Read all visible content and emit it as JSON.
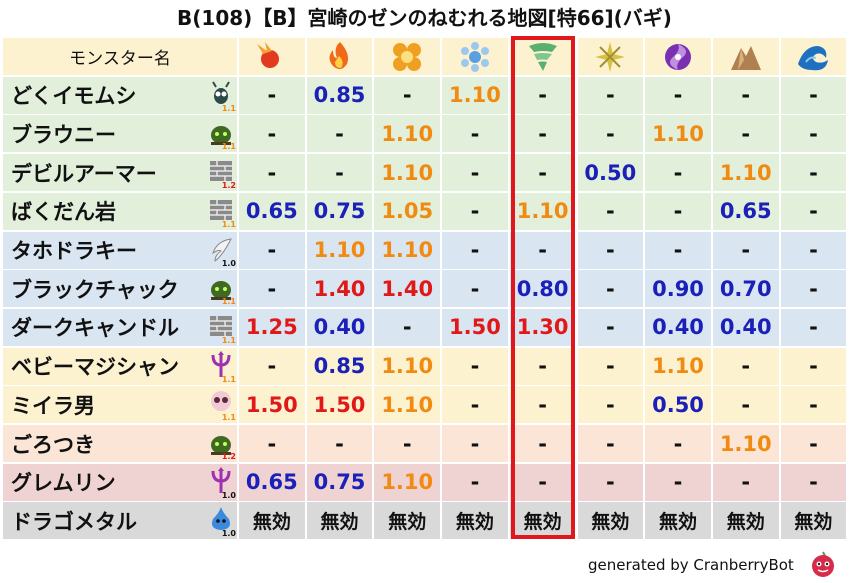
{
  "title": "B(108)【B】宮崎のゼンのねむれる地図[特66](バギ)",
  "header": {
    "name_label": "モンスター名",
    "elements": [
      {
        "icon": "fire-ball-icon",
        "color": "#e23a1e"
      },
      {
        "icon": "flame-icon",
        "color": "#f06a1a"
      },
      {
        "icon": "explosion-icon",
        "color": "#f0a020"
      },
      {
        "icon": "ice-crystal-icon",
        "color": "#5aa0e0"
      },
      {
        "icon": "tornado-icon",
        "color": "#5ab070"
      },
      {
        "icon": "light-burst-icon",
        "color": "#d8c040"
      },
      {
        "icon": "dark-vortex-icon",
        "color": "#7a30b0"
      },
      {
        "icon": "earth-rock-icon",
        "color": "#b08050"
      },
      {
        "icon": "water-wave-icon",
        "color": "#2070c0"
      }
    ]
  },
  "colors": {
    "red": "#e01818",
    "blue": "#1a20b8",
    "orange": "#f08a10",
    "neutral": "#111111",
    "highlight": "#e0181e"
  },
  "rows": [
    {
      "name": "どくイモムシ",
      "type_icon": "insect-icon",
      "type_ver": "1.1",
      "bg": "#e2efda",
      "values": [
        "-",
        "0.85",
        "-",
        "1.10",
        "-",
        "-",
        "-",
        "-",
        "-"
      ]
    },
    {
      "name": "ブラウニー",
      "type_icon": "zombie-icon",
      "type_ver": "1.1",
      "bg": "#e2efda",
      "values": [
        "-",
        "-",
        "1.10",
        "-",
        "-",
        "-",
        "1.10",
        "-",
        "-"
      ]
    },
    {
      "name": "デビルアーマー",
      "type_icon": "material-icon",
      "type_ver": "1.2",
      "bg": "#e2efda",
      "values": [
        "-",
        "-",
        "1.10",
        "-",
        "-",
        "0.50",
        "-",
        "1.10",
        "-"
      ]
    },
    {
      "name": "ばくだん岩",
      "type_icon": "material-icon",
      "type_ver": "1.1",
      "bg": "#e2efda",
      "values": [
        "0.65",
        "0.75",
        "1.05",
        "-",
        "1.10",
        "-",
        "-",
        "0.65",
        "-"
      ]
    },
    {
      "name": "タホドラキー",
      "type_icon": "wing-icon",
      "type_ver": "1.0",
      "bg": "#dae5f2",
      "values": [
        "-",
        "1.10",
        "1.10",
        "-",
        "-",
        "-",
        "-",
        "-",
        "-"
      ]
    },
    {
      "name": "ブラックチャック",
      "type_icon": "zombie-icon",
      "type_ver": "1.1",
      "bg": "#dae5f2",
      "values": [
        "-",
        "1.40",
        "1.40",
        "-",
        "0.80",
        "-",
        "0.90",
        "0.70",
        "-"
      ]
    },
    {
      "name": "ダークキャンドル",
      "type_icon": "material-icon",
      "type_ver": "1.1",
      "bg": "#dae5f2",
      "values": [
        "1.25",
        "0.40",
        "-",
        "1.50",
        "1.30",
        "-",
        "0.40",
        "0.40",
        "-"
      ]
    },
    {
      "name": "ベビーマジシャン",
      "type_icon": "devil-icon",
      "type_ver": "1.1",
      "bg": "#fdf2d0",
      "values": [
        "-",
        "0.85",
        "1.10",
        "-",
        "-",
        "-",
        "1.10",
        "-",
        "-"
      ]
    },
    {
      "name": "ミイラ男",
      "type_icon": "skull-icon",
      "type_ver": "1.1",
      "bg": "#fdf2d0",
      "values": [
        "1.50",
        "1.50",
        "1.10",
        "-",
        "-",
        "-",
        "0.50",
        "-",
        "-"
      ]
    },
    {
      "name": "ごろつき",
      "type_icon": "zombie-icon",
      "type_ver": "1.2",
      "bg": "#fbe5d6",
      "values": [
        "-",
        "-",
        "-",
        "-",
        "-",
        "-",
        "-",
        "1.10",
        "-"
      ]
    },
    {
      "name": "グレムリン",
      "type_icon": "devil-icon",
      "type_ver": "1.0",
      "bg": "#efd3d3",
      "values": [
        "0.65",
        "0.75",
        "1.10",
        "-",
        "-",
        "-",
        "-",
        "-",
        "-"
      ]
    },
    {
      "name": "ドラゴメタル",
      "type_icon": "slime-icon",
      "type_ver": "1.0",
      "bg": "#d9d9d9",
      "values": [
        "無効",
        "無効",
        "無効",
        "無効",
        "無効",
        "無効",
        "無効",
        "無効",
        "無効"
      ]
    }
  ],
  "footer": {
    "text": "generated by CranberryBot",
    "logo": "cranberry-bot-logo-icon"
  }
}
